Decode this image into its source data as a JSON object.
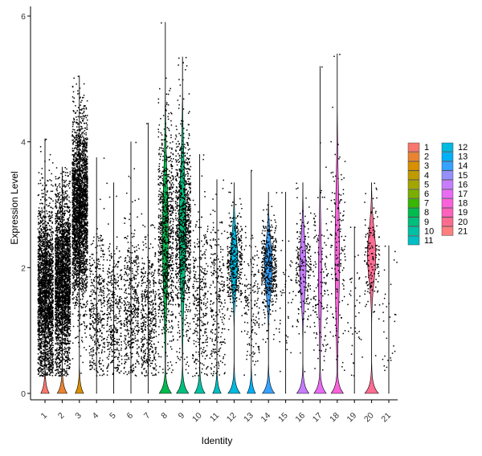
{
  "chart_data": {
    "type": "violin",
    "xlabel": "Identity",
    "ylabel": "Expression Level",
    "ylim": [
      0,
      6
    ],
    "y_ticks": [
      "0",
      "2",
      "4",
      "6"
    ],
    "grid": false,
    "legend_position": "right",
    "categories": [
      "1",
      "2",
      "3",
      "4",
      "5",
      "6",
      "7",
      "8",
      "9",
      "10",
      "11",
      "12",
      "13",
      "14",
      "15",
      "16",
      "17",
      "18",
      "19",
      "20",
      "21"
    ],
    "colors": [
      "#F8766D",
      "#EA8331",
      "#D89000",
      "#C09B00",
      "#A3A500",
      "#7CAE00",
      "#39B600",
      "#00BB4E",
      "#00BF7D",
      "#00C1A3",
      "#00BFC4",
      "#00BAE0",
      "#00B0F6",
      "#35A2FF",
      "#9590FF",
      "#C77CFF",
      "#E76BF3",
      "#FA62DB",
      "#FF62BC",
      "#FF6C91",
      "#FF7F7F"
    ],
    "series": [
      {
        "name": "1",
        "max": 4.05,
        "median": 1.6,
        "spread": 0.75,
        "n": 2200,
        "zero_width": 0.55,
        "body_width": 0.02
      },
      {
        "name": "2",
        "max": 3.6,
        "median": 1.8,
        "spread": 0.7,
        "n": 2600,
        "zero_width": 0.65,
        "body_width": 0.02
      },
      {
        "name": "3",
        "max": 5.05,
        "median": 2.9,
        "spread": 0.75,
        "n": 2600,
        "zero_width": 0.55,
        "body_width": 0.02
      },
      {
        "name": "4",
        "max": 3.75,
        "median": 1.3,
        "spread": 0.65,
        "n": 380,
        "zero_width": 0.02,
        "body_width": 0.0
      },
      {
        "name": "5",
        "max": 3.35,
        "median": 1.3,
        "spread": 0.6,
        "n": 360,
        "zero_width": 0.02,
        "body_width": 0.0
      },
      {
        "name": "6",
        "max": 4.0,
        "median": 1.4,
        "spread": 0.65,
        "n": 450,
        "zero_width": 0.02,
        "body_width": 0.0
      },
      {
        "name": "7",
        "max": 4.3,
        "median": 1.2,
        "spread": 0.6,
        "n": 450,
        "zero_width": 0.02,
        "body_width": 0.0
      },
      {
        "name": "8",
        "max": 5.9,
        "median": 2.5,
        "spread": 0.9,
        "n": 900,
        "zero_width": 0.8,
        "body_width": 0.38
      },
      {
        "name": "9",
        "max": 5.35,
        "median": 2.6,
        "spread": 0.85,
        "n": 950,
        "zero_width": 0.8,
        "body_width": 0.45
      },
      {
        "name": "10",
        "max": 3.8,
        "median": 1.5,
        "spread": 0.7,
        "n": 320,
        "zero_width": 0.7,
        "body_width": 0.02
      },
      {
        "name": "11",
        "max": 3.4,
        "median": 1.5,
        "spread": 0.65,
        "n": 260,
        "zero_width": 0.55,
        "body_width": 0.02
      },
      {
        "name": "12",
        "max": 3.35,
        "median": 2.1,
        "spread": 0.4,
        "n": 360,
        "zero_width": 0.8,
        "body_width": 0.48
      },
      {
        "name": "13",
        "max": 3.55,
        "median": 1.4,
        "spread": 0.65,
        "n": 160,
        "zero_width": 0.55,
        "body_width": 0.02
      },
      {
        "name": "14",
        "max": 3.2,
        "median": 2.0,
        "spread": 0.4,
        "n": 420,
        "zero_width": 0.8,
        "body_width": 0.5
      },
      {
        "name": "15",
        "max": 3.2,
        "median": 1.5,
        "spread": 0.6,
        "n": 45,
        "zero_width": 0.02,
        "body_width": 0.0
      },
      {
        "name": "16",
        "max": 3.35,
        "median": 2.0,
        "spread": 0.45,
        "n": 200,
        "zero_width": 0.8,
        "body_width": 0.42
      },
      {
        "name": "17",
        "max": 5.2,
        "median": 1.8,
        "spread": 0.7,
        "n": 140,
        "zero_width": 0.8,
        "body_width": 0.22
      },
      {
        "name": "18",
        "max": 5.4,
        "median": 2.2,
        "spread": 0.95,
        "n": 150,
        "zero_width": 0.8,
        "body_width": 0.3
      },
      {
        "name": "19",
        "max": 2.65,
        "median": 1.3,
        "spread": 0.6,
        "n": 40,
        "zero_width": 0.02,
        "body_width": 0.0
      },
      {
        "name": "20",
        "max": 3.35,
        "median": 2.2,
        "spread": 0.4,
        "n": 140,
        "zero_width": 0.9,
        "body_width": 0.55
      },
      {
        "name": "21",
        "max": 2.35,
        "median": 1.1,
        "spread": 0.6,
        "n": 30,
        "zero_width": 0.02,
        "body_width": 0.0
      }
    ]
  }
}
